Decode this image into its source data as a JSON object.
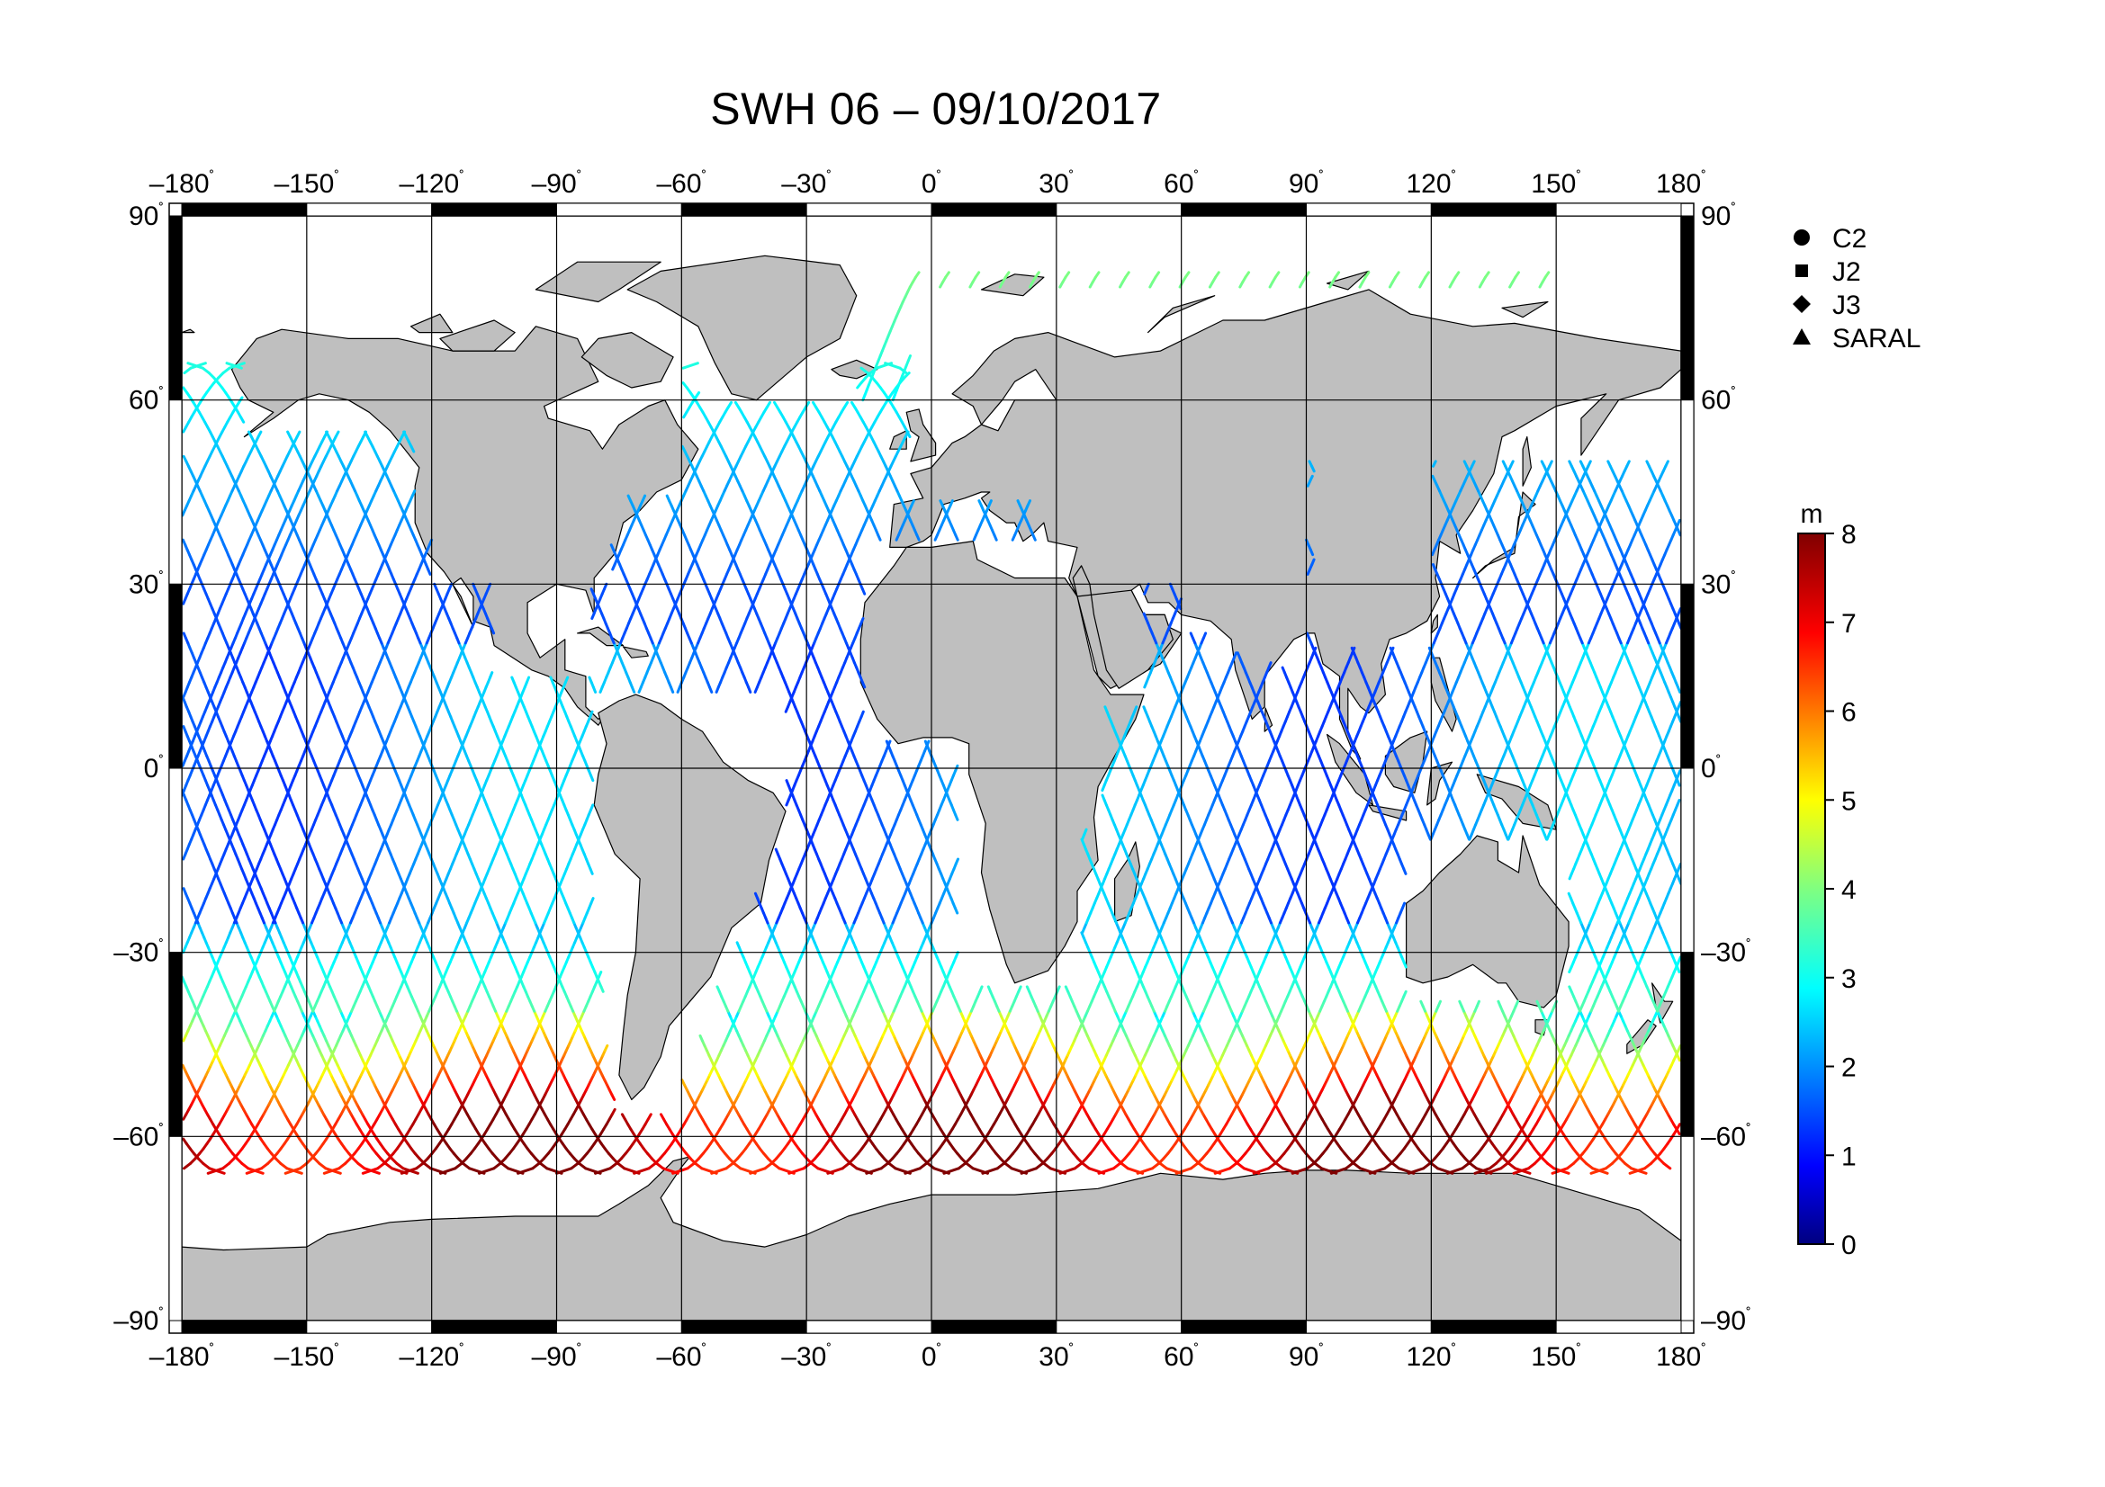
{
  "title": "SWH 06 – 09/10/2017",
  "projection": "plate-carree",
  "lon_range": [
    -180,
    180
  ],
  "lat_range": [
    -90,
    90
  ],
  "lon_ticks": [
    {
      "value": -180,
      "label": "–180"
    },
    {
      "value": -150,
      "label": "–150"
    },
    {
      "value": -120,
      "label": "–120"
    },
    {
      "value": -90,
      "label": "–90"
    },
    {
      "value": -60,
      "label": "–60"
    },
    {
      "value": -30,
      "label": "–30"
    },
    {
      "value": 0,
      "label": "0"
    },
    {
      "value": 30,
      "label": "30"
    },
    {
      "value": 60,
      "label": "60"
    },
    {
      "value": 90,
      "label": "90"
    },
    {
      "value": 120,
      "label": "120"
    },
    {
      "value": 150,
      "label": "150"
    },
    {
      "value": 180,
      "label": "180"
    }
  ],
  "lat_ticks": [
    {
      "value": 90,
      "label": "90"
    },
    {
      "value": 60,
      "label": "60"
    },
    {
      "value": 30,
      "label": "30"
    },
    {
      "value": 0,
      "label": "0"
    },
    {
      "value": -30,
      "label": "–30"
    },
    {
      "value": -60,
      "label": "–60"
    },
    {
      "value": -90,
      "label": "–90"
    }
  ],
  "degree_symbol": "˚",
  "legend": [
    {
      "symbol": "circle",
      "label": "C2"
    },
    {
      "symbol": "square",
      "label": "J2"
    },
    {
      "symbol": "diamond",
      "label": "J3"
    },
    {
      "symbol": "triangle",
      "label": "SARAL"
    }
  ],
  "colorbar": {
    "unit": "m",
    "min": 0,
    "max": 8,
    "ticks": [
      0,
      1,
      2,
      3,
      4,
      5,
      6,
      7,
      8
    ],
    "colormap": "jet"
  },
  "colors": {
    "land": "#bfbfbf",
    "ocean": "#ffffff",
    "grid": "#000000",
    "frame_dark": "#000000"
  }
}
